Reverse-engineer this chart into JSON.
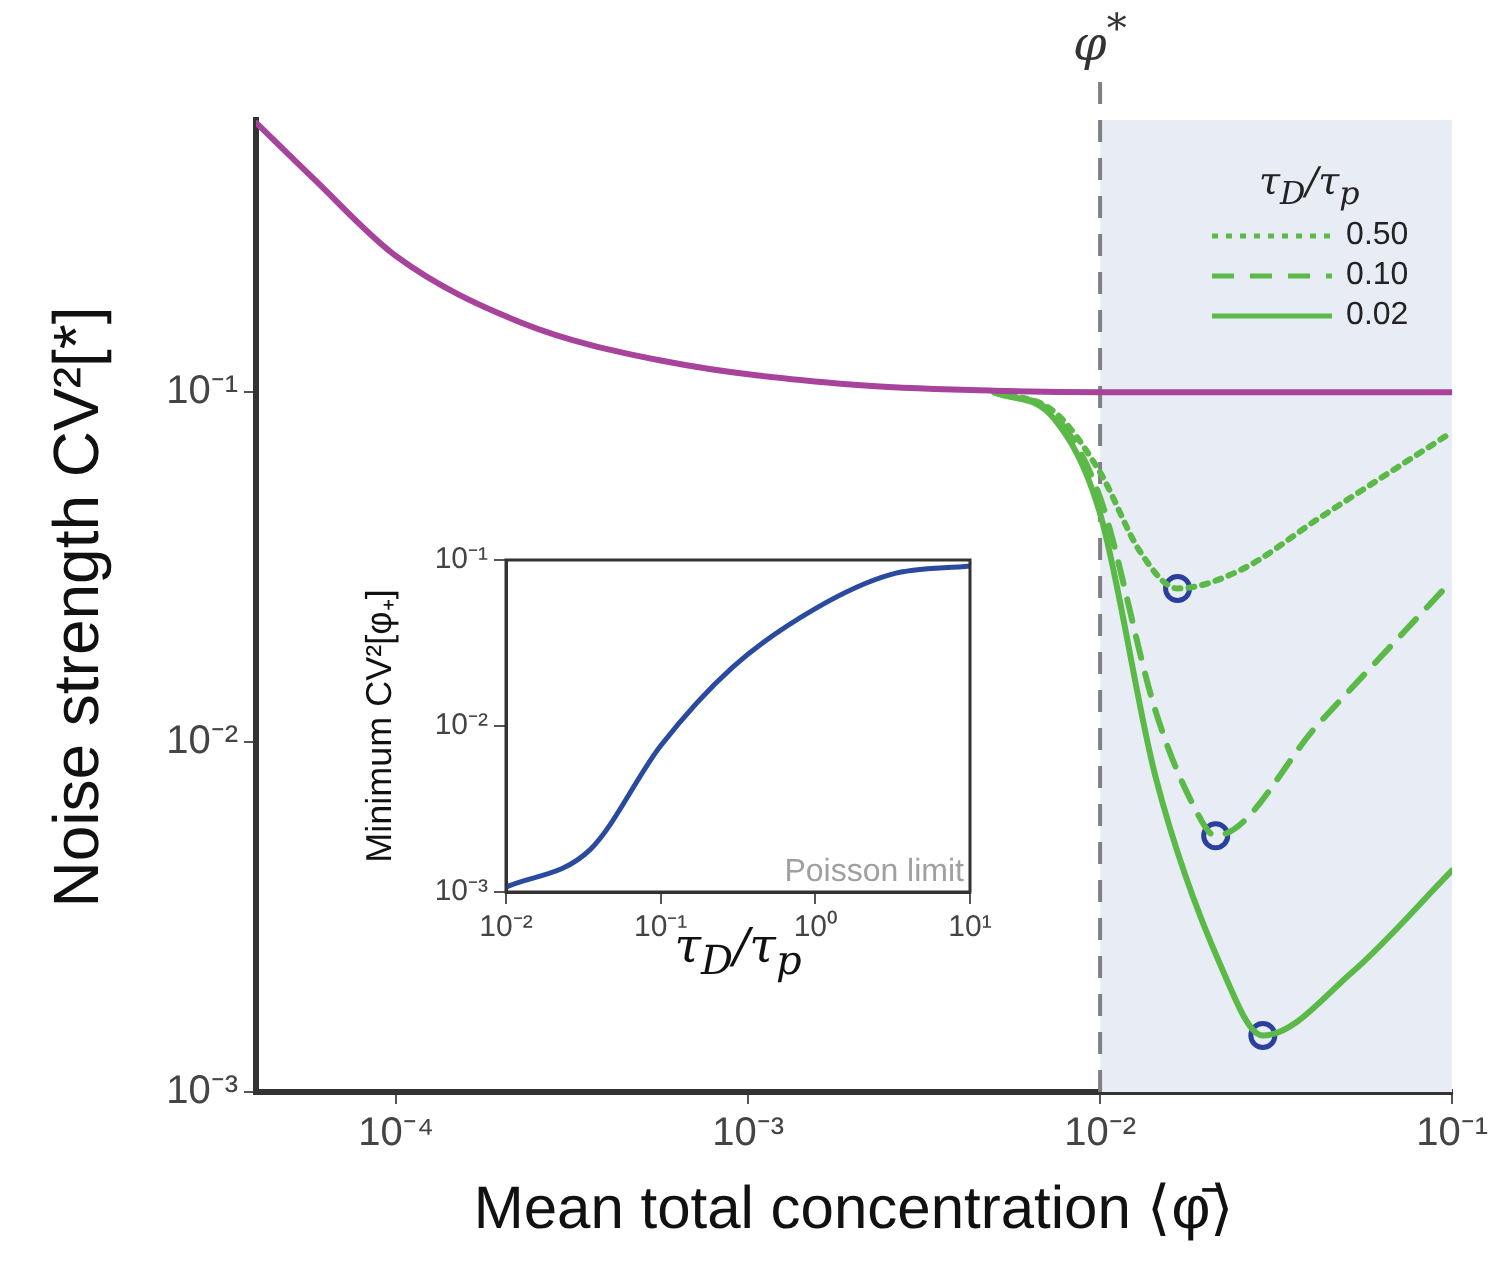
{
  "chart_data": [
    {
      "type": "line",
      "xlabel": "Mean total concentration ⟨φ̄⟩",
      "ylabel": "Noise strength  CV²[*]",
      "legend_title": "τ$_{D}$/τ$_{p}$",
      "log": "xy",
      "grid": false,
      "legend": "top right",
      "xlim": [
        4e-05,
        0.1
      ],
      "xticks": [
        {
          "value": 0.0001,
          "label": "10⁻⁴"
        },
        {
          "value": 0.001,
          "label": "10⁻³"
        },
        {
          "value": 0.01,
          "label": "10⁻²"
        },
        {
          "value": 0.1,
          "label": "10⁻¹"
        }
      ],
      "ylim": [
        0.001,
        0.6
      ],
      "yticks": [
        {
          "value": 0.001,
          "label": "10⁻³"
        },
        {
          "value": 0.01,
          "label": "10⁻²"
        },
        {
          "value": 0.1,
          "label": "10⁻¹"
        }
      ],
      "bands": [
        {
          "axis": "x",
          "from": 0.01,
          "to": 0.1,
          "color": "#e8edf5"
        }
      ],
      "ref_lines": [
        {
          "axis": "x",
          "value": 0.01,
          "label": "φ$^{*}$",
          "color": "#808080",
          "line_style": "dashed"
        }
      ],
      "series": [
        {
          "color": "#a8439b",
          "line_style": "solid",
          "x": [
            4e-05,
            5.8e-05,
            0.0001,
            0.000227,
            0.00057,
            0.002,
            0.005,
            0.01,
            0.03,
            0.1
          ],
          "values": [
            0.59,
            0.41,
            0.245,
            0.158,
            0.123,
            0.105,
            0.101,
            0.1,
            0.1,
            0.1
          ]
        },
        {
          "name": "0.50",
          "color": "#5ab947",
          "line_style": "dotted",
          "x": [
            0.005,
            0.0074,
            0.01,
            0.013,
            0.0166,
            0.025,
            0.0418,
            0.1
          ],
          "values": [
            0.1,
            0.088,
            0.059,
            0.035,
            0.0275,
            0.031,
            0.0436,
            0.077
          ]
        },
        {
          "name": "0.10",
          "color": "#5ab947",
          "line_style": "dashed",
          "x": [
            0.005,
            0.0074,
            0.01,
            0.0144,
            0.0184,
            0.0213,
            0.0418,
            0.1
          ],
          "values": [
            0.1,
            0.086,
            0.05,
            0.0122,
            0.0066,
            0.0054,
            0.0113,
            0.029
          ]
        },
        {
          "name": "0.02",
          "color": "#5ab947",
          "line_style": "solid",
          "x": [
            0.005,
            0.0074,
            0.01,
            0.0144,
            0.022,
            0.029,
            0.052,
            0.1
          ],
          "values": [
            0.1,
            0.084,
            0.045,
            0.0079,
            0.0023,
            0.00145,
            0.0022,
            0.0043
          ]
        },
        {
          "type": "scatter",
          "marker": "circle",
          "color": "#2a3f9e",
          "x": [
            0.0166,
            0.0213,
            0.029
          ],
          "values": [
            0.0275,
            0.0054,
            0.00145
          ]
        }
      ]
    },
    {
      "type": "line",
      "xlabel": "τ$_{D}$/τ$_{p}$",
      "ylabel": "Minimum CV²[φ₊]",
      "log": "xy",
      "grid": false,
      "annotations": [
        "Poisson limit"
      ],
      "xlim": [
        0.01,
        10
      ],
      "xticks": [
        {
          "value": 0.01,
          "label": "10⁻²"
        },
        {
          "value": 0.1,
          "label": "10⁻¹"
        },
        {
          "value": 1,
          "label": "10⁰"
        },
        {
          "value": 10,
          "label": "10¹"
        }
      ],
      "ylim": [
        0.001,
        0.1
      ],
      "yticks": [
        {
          "value": 0.001,
          "label": "10⁻³"
        },
        {
          "value": 0.01,
          "label": "10⁻²"
        },
        {
          "value": 0.1,
          "label": "10⁻¹"
        }
      ],
      "series": [
        {
          "color": "#2a4aa0",
          "line_style": "solid",
          "x": [
            0.01,
            0.035,
            0.1,
            0.29,
            1,
            3.1,
            10
          ],
          "values": [
            0.00107,
            0.0018,
            0.0076,
            0.0225,
            0.051,
            0.082,
            0.092
          ]
        }
      ]
    }
  ]
}
